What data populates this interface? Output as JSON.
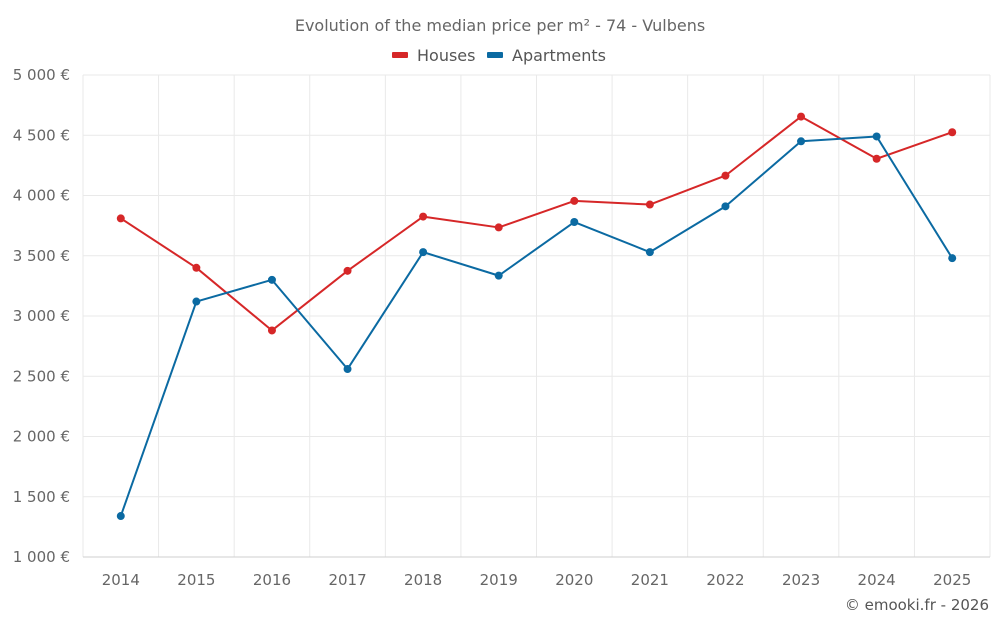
{
  "chart_data": {
    "type": "line",
    "title": "Evolution of the median price per m² - 74 - Vulbens",
    "x": [
      "2014",
      "2015",
      "2016",
      "2017",
      "2018",
      "2019",
      "2020",
      "2021",
      "2022",
      "2023",
      "2024",
      "2025"
    ],
    "series": [
      {
        "name": "Houses",
        "color": "#d62728",
        "values": [
          3810,
          3400,
          2880,
          3375,
          3825,
          3735,
          3955,
          3925,
          4165,
          4655,
          4305,
          4525
        ]
      },
      {
        "name": "Apartments",
        "color": "#0b6aa2",
        "values": [
          1340,
          3120,
          3300,
          2560,
          3530,
          3335,
          3780,
          3530,
          3910,
          4450,
          4490,
          3480
        ]
      }
    ],
    "y_ticks": [
      "1 000 €",
      "1 500 €",
      "2 000 €",
      "2 500 €",
      "3 000 €",
      "3 500 €",
      "4 000 €",
      "4 500 €",
      "5 000 €"
    ],
    "ylim": [
      1000,
      5000
    ],
    "grid": true,
    "legend_position": "top-center"
  },
  "credit": "© emooki.fr - 2026"
}
